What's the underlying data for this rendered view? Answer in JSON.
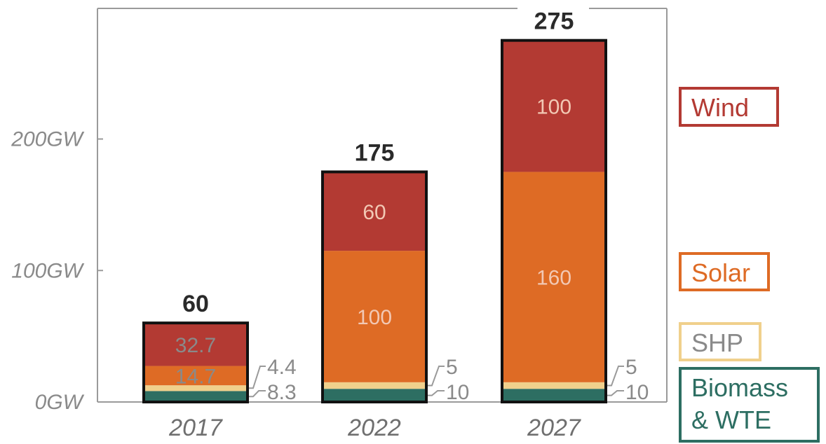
{
  "chart_data": {
    "type": "bar",
    "stacked": true,
    "categories": [
      "2017",
      "2022",
      "2027"
    ],
    "y_ticks": [
      "0GW",
      "100GW",
      "200GW"
    ],
    "ylim": [
      0,
      300
    ],
    "totals": [
      "60",
      "175",
      "275"
    ],
    "series": [
      {
        "name": "Biomass & WTE",
        "legend_lines": [
          "Biomass",
          "& WTE"
        ],
        "color": "#2d6e62",
        "values": [
          8.3,
          10,
          10
        ],
        "labels": [
          "8.3",
          "10",
          "10"
        ]
      },
      {
        "name": "SHP",
        "legend_lines": [
          "SHP"
        ],
        "color": "#f0d08c",
        "values": [
          4.4,
          5,
          5
        ],
        "labels": [
          "4.4",
          "5",
          "5"
        ]
      },
      {
        "name": "Solar",
        "legend_lines": [
          "Solar"
        ],
        "color": "#de6b25",
        "values": [
          14.7,
          100,
          160
        ],
        "labels": [
          "14.7",
          "100",
          "160"
        ]
      },
      {
        "name": "Wind",
        "legend_lines": [
          "Wind"
        ],
        "color": "#b33a33",
        "values": [
          32.7,
          60,
          100
        ],
        "labels": [
          "32.7",
          "60",
          "100"
        ]
      }
    ],
    "legend_placement": "right",
    "grid": false
  }
}
